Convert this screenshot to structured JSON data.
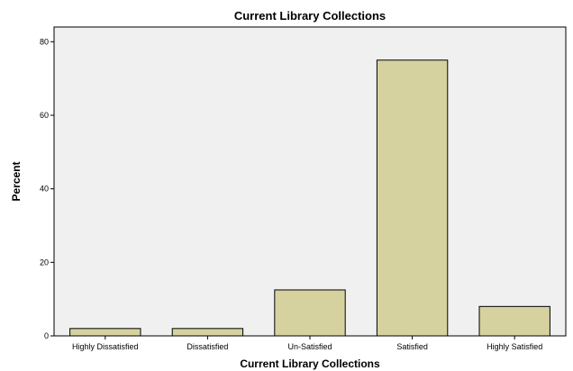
{
  "chart_data": {
    "type": "bar",
    "title": "Current Library Collections",
    "xlabel": "Current Library Collections",
    "ylabel": "Percent",
    "categories": [
      "Highly Dissatisfied",
      "Dissatisfied",
      "Un-Satisfied",
      "Satisfied",
      "Highly Satisfied"
    ],
    "values": [
      2,
      2,
      12.5,
      75,
      8
    ],
    "ylim": [
      0,
      84
    ],
    "yticks": [
      0,
      20,
      40,
      60,
      80
    ],
    "grid": false,
    "colors": {
      "bar_fill": "#d6d2a0",
      "bar_stroke": "#000000",
      "plot_background": "#f0f0f0",
      "plot_border": "#000000"
    }
  }
}
